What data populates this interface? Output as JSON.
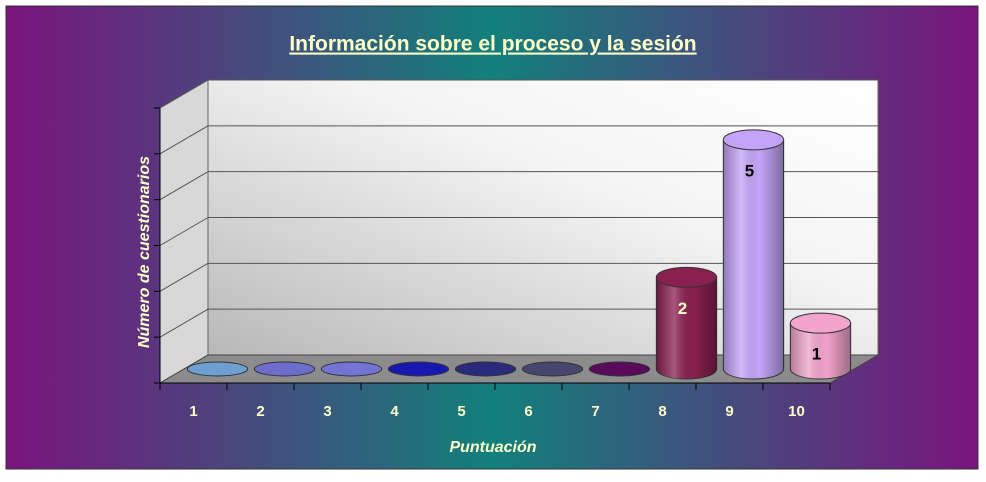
{
  "chart_data": {
    "type": "bar3d",
    "title": "Información sobre el proceso y la sesión",
    "y_label": "Número de cuestionarios",
    "x_label": "Puntuación",
    "categories": [
      "1",
      "2",
      "3",
      "4",
      "5",
      "6",
      "7",
      "8",
      "9",
      "10"
    ],
    "values": [
      0,
      0,
      0,
      0,
      0,
      0,
      0,
      2,
      5,
      1
    ],
    "colors": [
      "#6f9fd0",
      "#6d6dcc",
      "#7474d4",
      "#1818b0",
      "#2a2a7c",
      "#46466e",
      "#5a0a5a",
      "#8a2050",
      "#c4a4f8",
      "#f2a4cc"
    ],
    "value_label_colors": [
      "#000000",
      "#000000",
      "#000000",
      "#000000",
      "#000000",
      "#000000",
      "#000000",
      "#ffffc0",
      "#000000",
      "#000000"
    ],
    "ylim": [
      0,
      6
    ],
    "yticks": [
      0,
      1,
      2,
      3,
      4,
      5,
      6
    ],
    "grid": true
  }
}
